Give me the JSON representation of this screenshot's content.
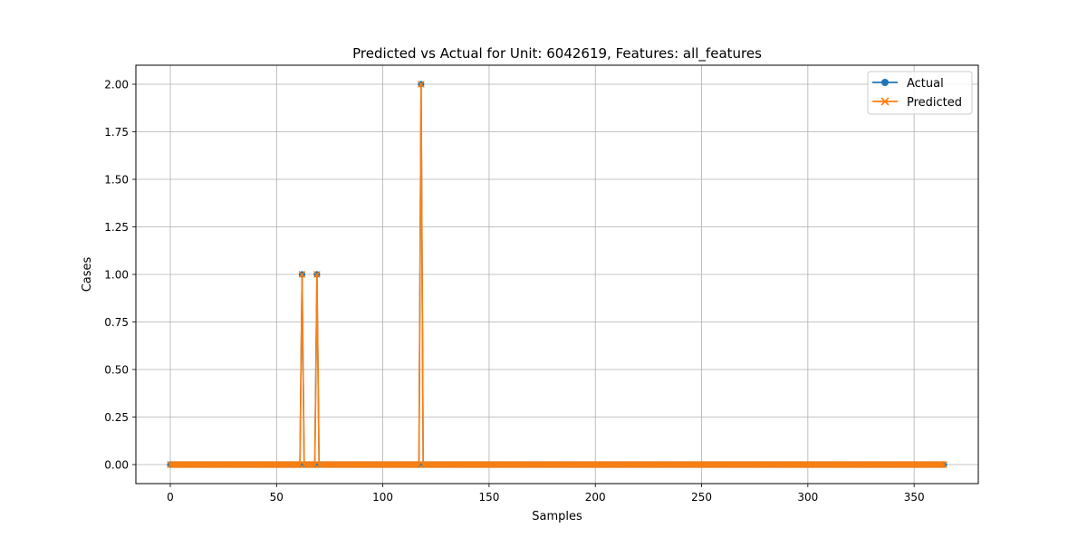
{
  "chart_data": {
    "type": "line",
    "title": "Predicted vs Actual for Unit: 6042619, Features: all_features",
    "xlabel": "Samples",
    "ylabel": "Cases",
    "xlim": [
      -16.2,
      380.2
    ],
    "ylim": [
      -0.1,
      2.1
    ],
    "xticks": [
      0,
      50,
      100,
      150,
      200,
      250,
      300,
      350
    ],
    "yticks": [
      0.0,
      0.25,
      0.5,
      0.75,
      1.0,
      1.25,
      1.5,
      1.75,
      2.0
    ],
    "xtick_labels": [
      "0",
      "50",
      "100",
      "150",
      "200",
      "250",
      "300",
      "350"
    ],
    "ytick_labels": [
      "0.00",
      "0.25",
      "0.50",
      "0.75",
      "1.00",
      "1.25",
      "1.50",
      "1.75",
      "2.00"
    ],
    "grid": true,
    "legend_position": "top-right",
    "n_samples": 365,
    "series": [
      {
        "name": "Actual",
        "color": "#1f77b4",
        "marker": "circle",
        "baseline": 0,
        "nonzero": [
          [
            62,
            1
          ],
          [
            69,
            1
          ],
          [
            118,
            2
          ]
        ]
      },
      {
        "name": "Predicted",
        "color": "#ff7f0e",
        "marker": "x",
        "baseline": 0,
        "nonzero": [
          [
            62,
            1
          ],
          [
            69,
            1
          ],
          [
            118,
            2
          ]
        ]
      }
    ]
  }
}
